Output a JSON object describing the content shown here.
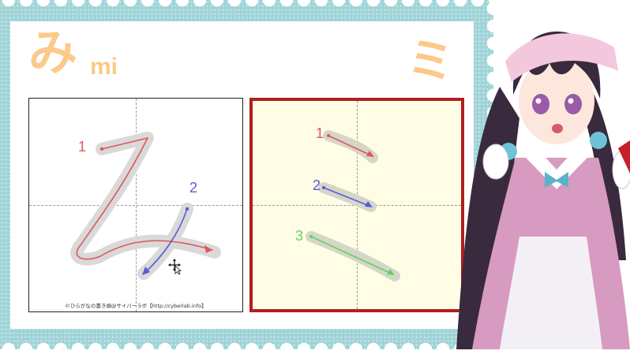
{
  "lesson": {
    "hiragana": "み",
    "romaji": "mi",
    "katakana": "ミ"
  },
  "hiragana_panel": {
    "stroke_numbers": [
      "1",
      "2"
    ],
    "credit": "©ひらがなの書き順@サイバーラボ【http://cyberlab.info】"
  },
  "katakana_panel": {
    "stroke_numbers": [
      "1",
      "2",
      "3"
    ]
  },
  "colors": {
    "accent_orange": "#fcc98a",
    "stamp_teal": "#9fd3d6",
    "frame_red": "#b21e1e",
    "stroke_red": "#e0565a",
    "stroke_blue": "#5a5ad6",
    "stroke_green": "#5cd65c"
  },
  "icons": {
    "cursor": "move-cursor-icon"
  }
}
